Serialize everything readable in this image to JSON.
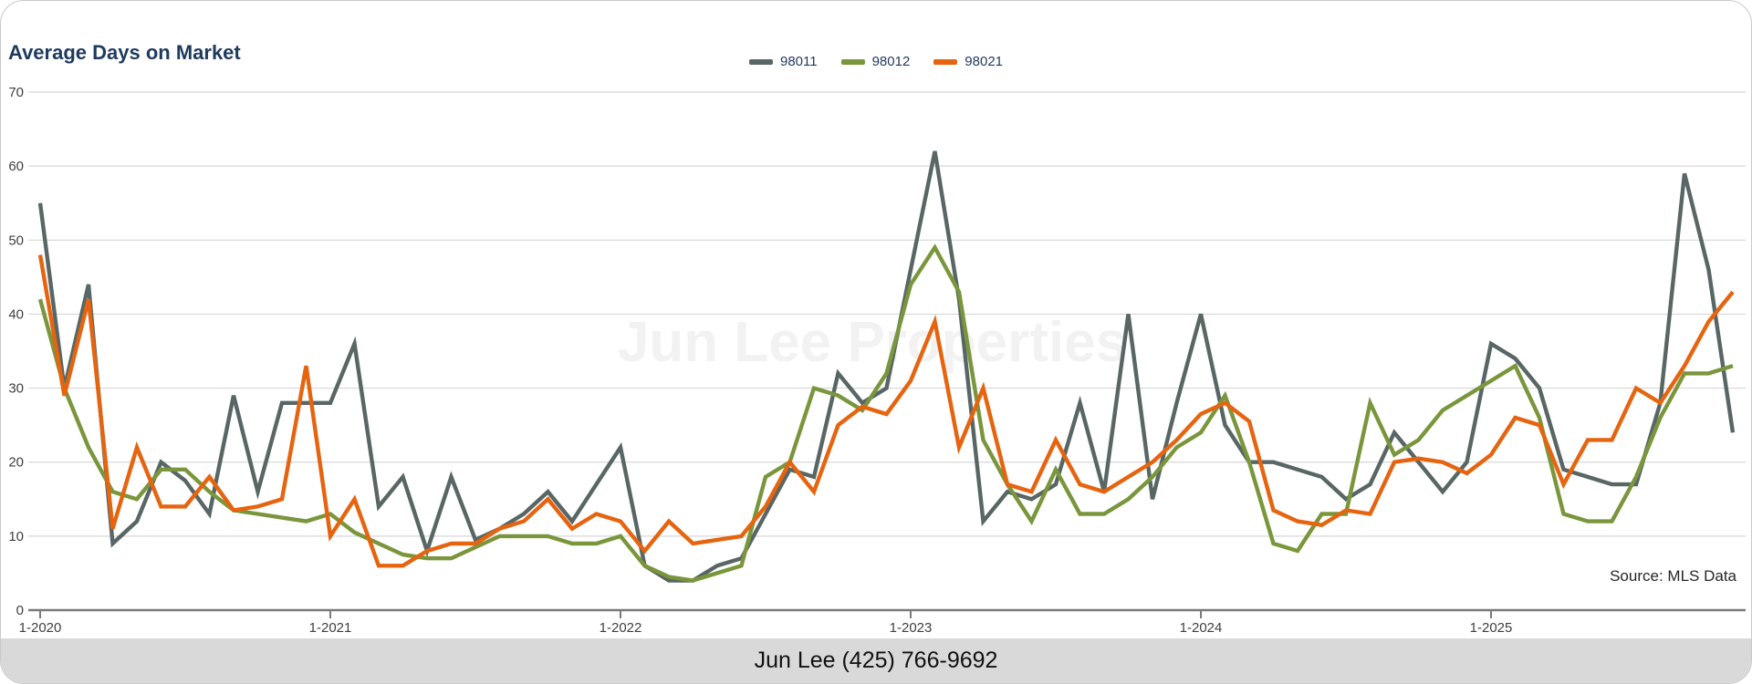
{
  "header": {
    "title": "Average Days on Market"
  },
  "footer": {
    "contact": "Jun Lee (425) 766-9692"
  },
  "chart_data": {
    "type": "line",
    "title": "Average Days on Market",
    "watermark": "Jun Lee Properties",
    "source": "Source: MLS Data",
    "grid": true,
    "legend_position": "top-center",
    "ylim": [
      0,
      70
    ],
    "y_ticks": [
      0,
      10,
      20,
      30,
      40,
      50,
      60,
      70
    ],
    "x_tick_labels": [
      "1-2020",
      "1-2021",
      "1-2022",
      "1-2023",
      "1-2024",
      "1-2025"
    ],
    "x_frequency": "monthly",
    "x_range_months": [
      "1-2020",
      "11-2025"
    ],
    "colors": {
      "grid": "#d7d7d7",
      "axis": "#7a7a7a",
      "tick_text": "#3f3f3f",
      "legend_text": "#1f3a5f",
      "watermark": "#f2f2f2",
      "source_text": "#262626"
    },
    "series": [
      {
        "name": "98011",
        "color": "#586665",
        "values": [
          55,
          30,
          44,
          9,
          12,
          20,
          17.5,
          13,
          29,
          16,
          28,
          28,
          28,
          36,
          14,
          18,
          8,
          18,
          9.5,
          11,
          13,
          16,
          12,
          17,
          22,
          6,
          4,
          4,
          6,
          7,
          13,
          19,
          18,
          32,
          28,
          30,
          46,
          62,
          42,
          12,
          16,
          15,
          17,
          28,
          16,
          40,
          15,
          28,
          40,
          25,
          20,
          20,
          19,
          18,
          15,
          17,
          24,
          20,
          16,
          20,
          36,
          34,
          30,
          19,
          18,
          17,
          17,
          28,
          59,
          46,
          24
        ]
      },
      {
        "name": "98012",
        "color": "#7a963c",
        "values": [
          42,
          30,
          22,
          16,
          15,
          19,
          19,
          16,
          13.5,
          13,
          12.5,
          12,
          13,
          10.5,
          9,
          7.5,
          7,
          7,
          8.5,
          10,
          10,
          10,
          9,
          9,
          10,
          6,
          4.5,
          4,
          5,
          6,
          18,
          20,
          30,
          29,
          27,
          32,
          44,
          49,
          43,
          23,
          17,
          12,
          19,
          13,
          13,
          15,
          18,
          22,
          24,
          29,
          20,
          9,
          8,
          13,
          13,
          28,
          21,
          23,
          27,
          29,
          31,
          33,
          26,
          13,
          12,
          12,
          18,
          26,
          32,
          32,
          33
        ]
      },
      {
        "name": "98021",
        "color": "#e6640f",
        "values": [
          48,
          29,
          42,
          11,
          22,
          14,
          14,
          18,
          13.5,
          14,
          15,
          33,
          10,
          15,
          6,
          6,
          8,
          9,
          9,
          11,
          12,
          15,
          11,
          13,
          12,
          8,
          12,
          9,
          9.5,
          10,
          14,
          20,
          16,
          25,
          27.5,
          26.5,
          31,
          39,
          22,
          30,
          17,
          16,
          23,
          17,
          16,
          18,
          20,
          23,
          26.5,
          28,
          25.5,
          13.5,
          12,
          11.5,
          13.5,
          13,
          20,
          20.5,
          20,
          18.5,
          21,
          26,
          25,
          17,
          23,
          23,
          30,
          28,
          33,
          39,
          43
        ]
      }
    ]
  }
}
